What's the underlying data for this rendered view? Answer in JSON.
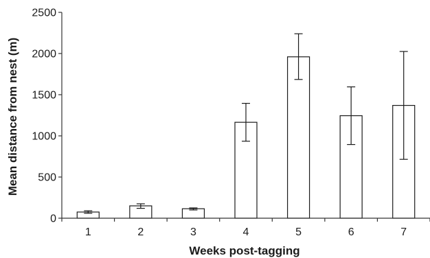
{
  "chart_data": {
    "type": "bar",
    "title": "",
    "xlabel": "Weeks post-tagging",
    "ylabel": "Mean distance from nest (m)",
    "ylim": [
      0,
      2500
    ],
    "yticks": [
      0,
      500,
      1000,
      1500,
      2000,
      2500
    ],
    "grid": false,
    "legend": "none",
    "categories": [
      "1",
      "2",
      "3",
      "4",
      "5",
      "6",
      "7"
    ],
    "values": [
      75,
      150,
      115,
      1165,
      1960,
      1245,
      1370
    ],
    "error_upper": [
      90,
      175,
      125,
      1395,
      2240,
      1595,
      2025
    ],
    "error_lower": [
      60,
      120,
      100,
      935,
      1685,
      895,
      715
    ],
    "colors": {
      "bar_fill": "#ffffff",
      "bar_stroke": "#1a1a1a",
      "axis": "#333333"
    }
  }
}
